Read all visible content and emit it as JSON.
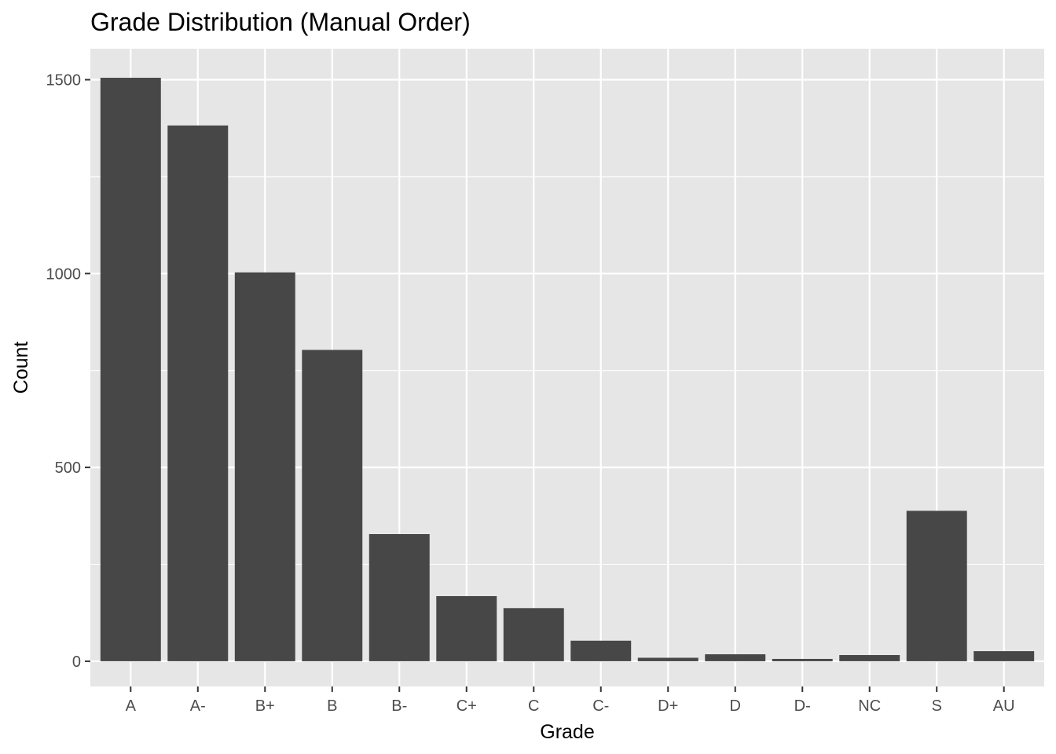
{
  "chart_data": {
    "type": "bar",
    "title": "Grade Distribution (Manual Order)",
    "xlabel": "Grade",
    "ylabel": "Count",
    "categories": [
      "A",
      "A-",
      "B+",
      "B",
      "B-",
      "C+",
      "C",
      "C-",
      "D+",
      "D",
      "D-",
      "NC",
      "S",
      "AU"
    ],
    "values": [
      1505,
      1382,
      1003,
      803,
      328,
      168,
      137,
      53,
      9,
      18,
      6,
      16,
      388,
      26
    ],
    "ylim": [
      -65,
      1580
    ],
    "yticks": [
      0,
      500,
      1000,
      1500
    ],
    "grid": true,
    "legend": "none",
    "colors": {
      "bar": "#474747",
      "panel": "#e6e6e6",
      "grid": "#ffffff"
    }
  }
}
